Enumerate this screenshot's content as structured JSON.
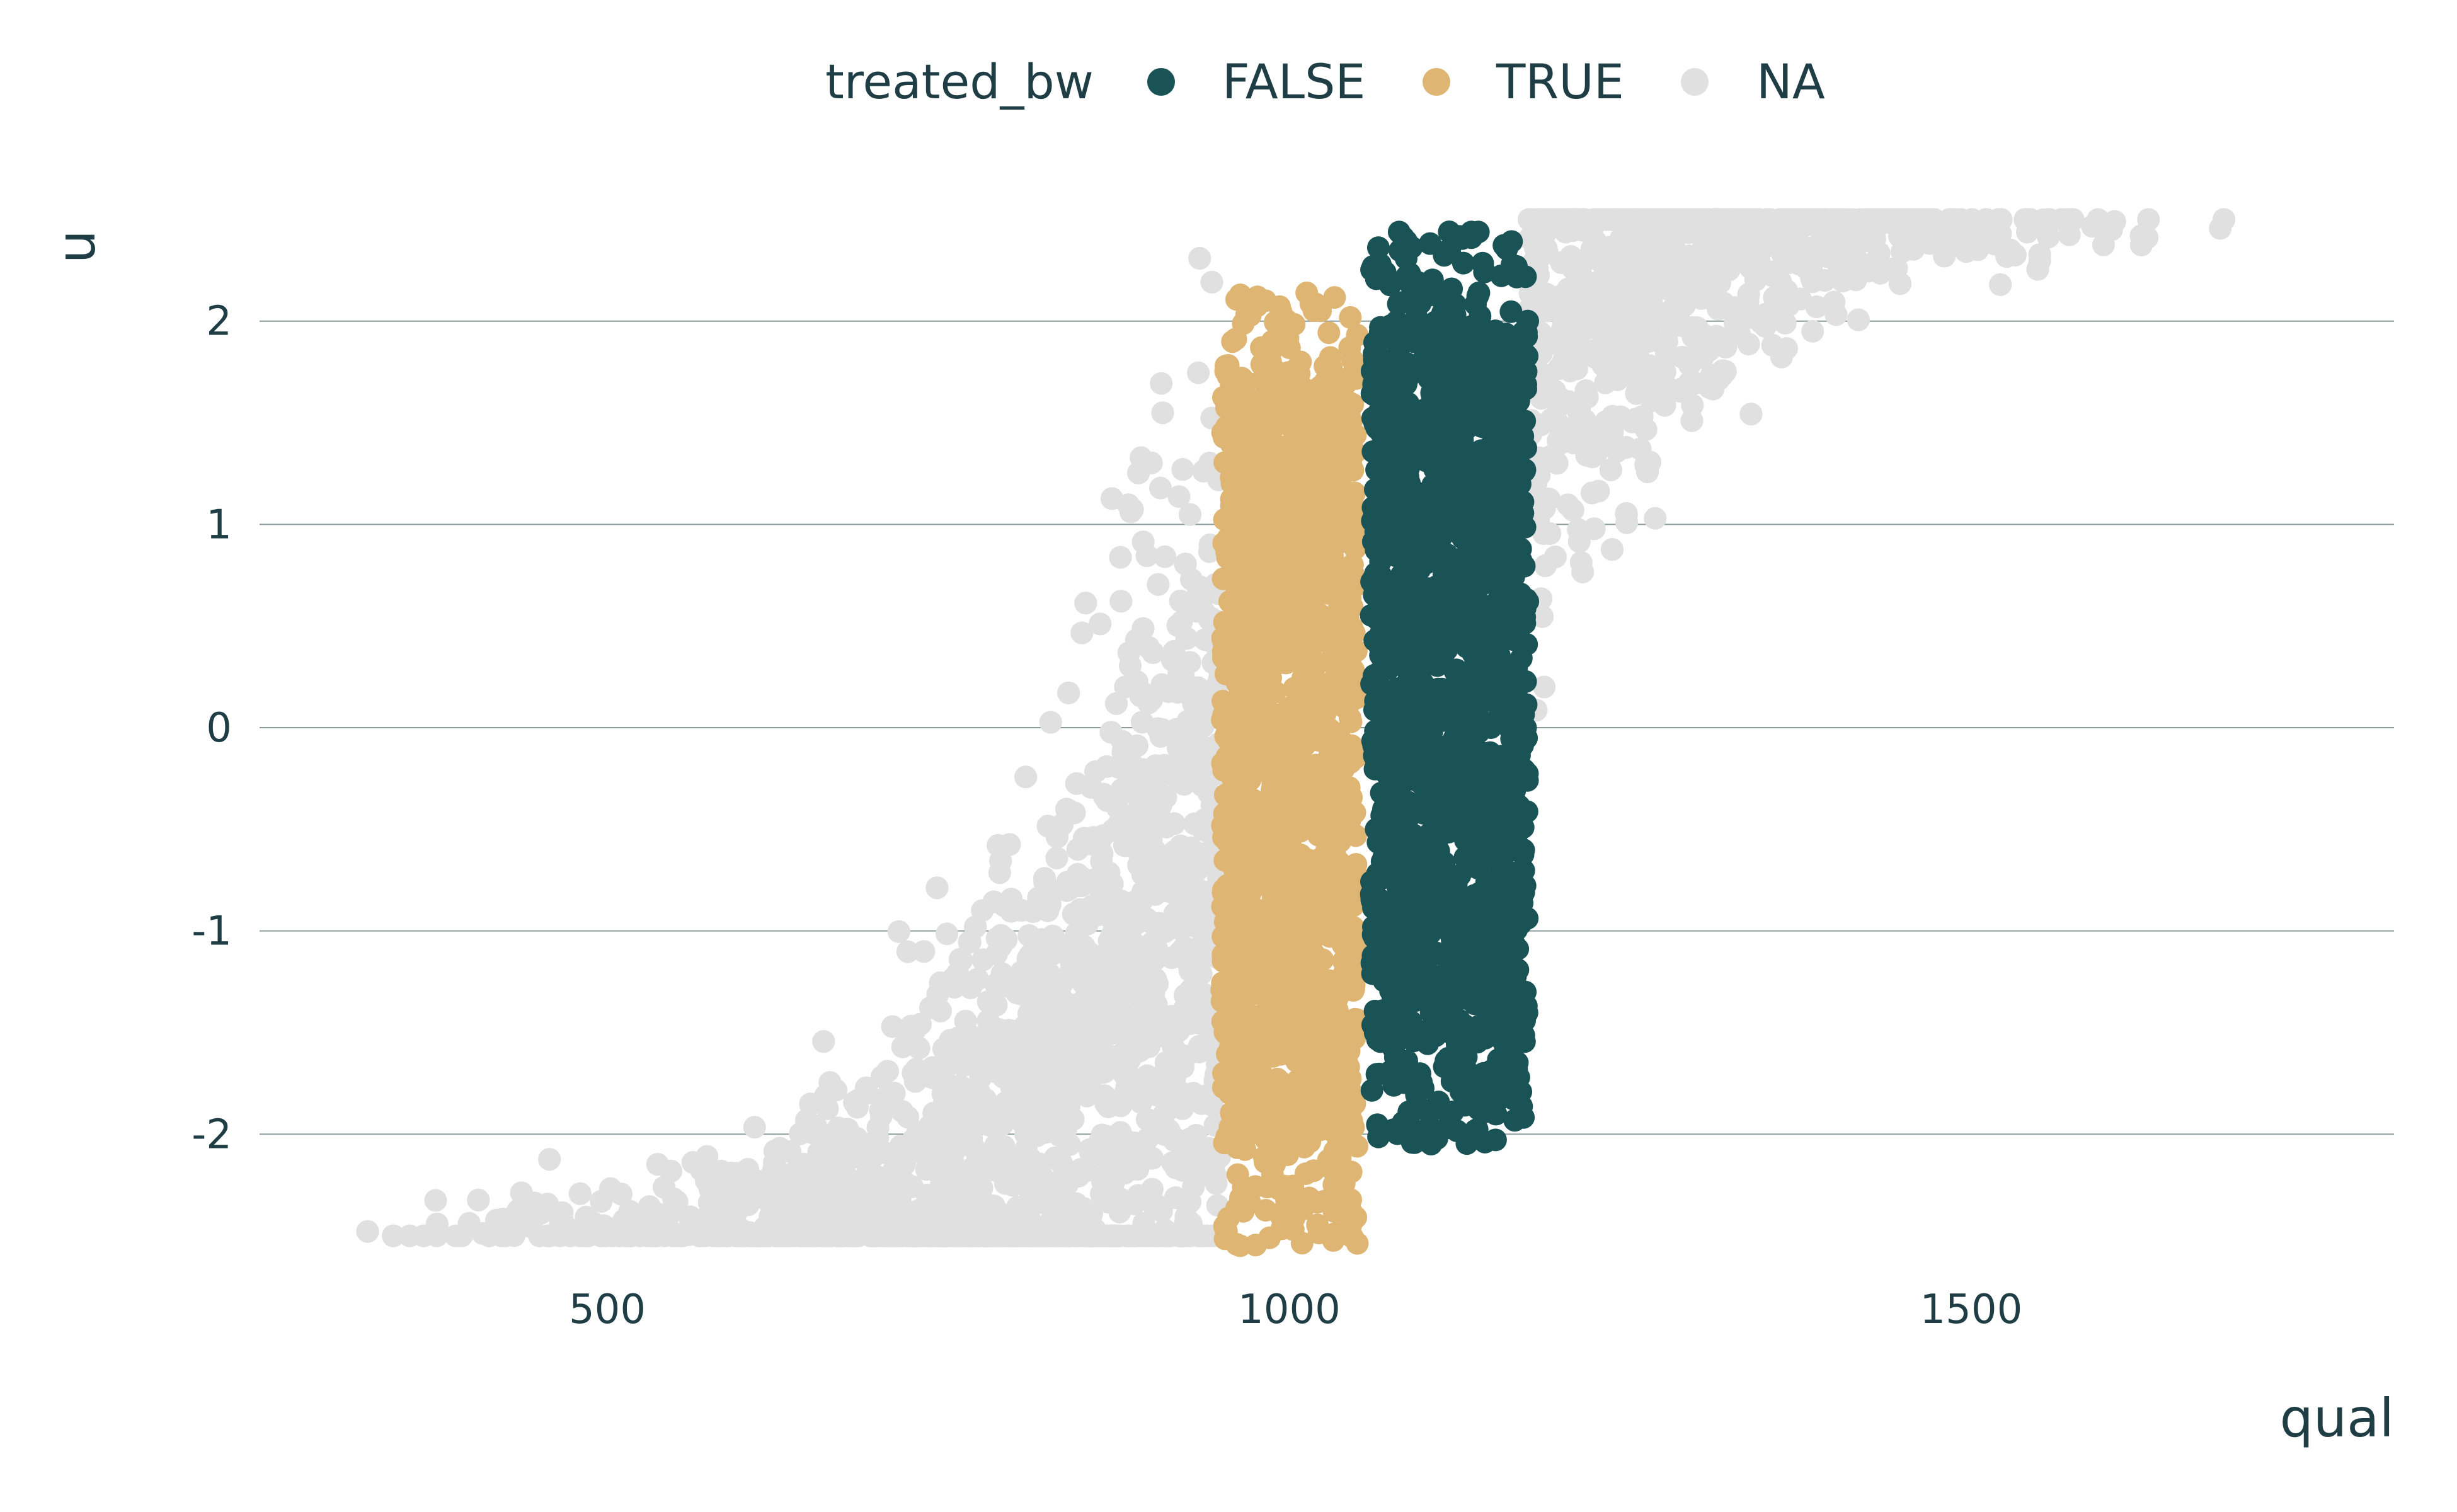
{
  "chart_data": {
    "type": "scatter",
    "title": "",
    "xlabel": "qual",
    "ylabel": "u",
    "xlim": [
      245,
      1810
    ],
    "ylim": [
      -2.65,
      2.65
    ],
    "x_ticks": [
      500,
      1000,
      1500
    ],
    "x_tick_labels": [
      "500",
      "1000",
      "1500"
    ],
    "y_ticks": [
      -2,
      -1,
      0,
      1,
      2
    ],
    "y_tick_labels": [
      "-2",
      "-1",
      "0",
      "1",
      "2"
    ],
    "grid": "horizontal major lines",
    "legend": {
      "title": "treated_bw",
      "placement": "top",
      "entries": [
        {
          "label": "FALSE",
          "color": "#1a5356"
        },
        {
          "label": "TRUE",
          "color": "#deb572"
        },
        {
          "label": "NA",
          "color": "#e0e0e0"
        }
      ]
    },
    "relationship": "u follows a logistic curve in qual, centered near qual = 1000; band 950–1050 is TRUE, band 1060–1175 is FALSE, all other points NA",
    "series": [
      {
        "name": "NA",
        "color": "#e0e0e0",
        "x_range": [
          320,
          1755
        ],
        "points_approx": 6000
      },
      {
        "name": "TRUE",
        "color": "#deb572",
        "x_range": [
          950,
          1050
        ],
        "points_approx": 1500
      },
      {
        "name": "FALSE",
        "color": "#1a5356",
        "x_range": [
          1060,
          1175
        ],
        "points_approx": 1600
      }
    ]
  }
}
